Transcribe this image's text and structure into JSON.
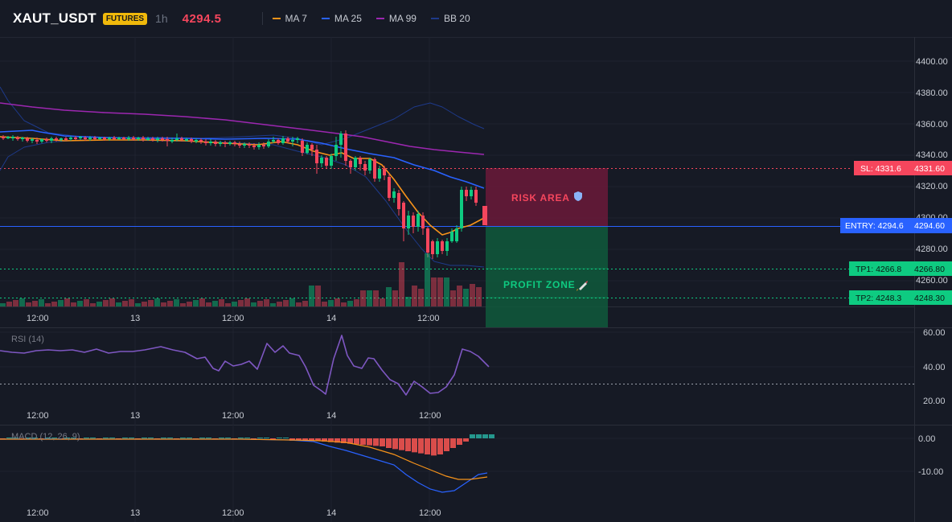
{
  "header": {
    "symbol": "XAUT_USDT",
    "badge": "FUTURES",
    "timeframe": "1h",
    "last_price": "4294.5",
    "legend": [
      {
        "label": "MA 7",
        "color": "#f7931a"
      },
      {
        "label": "MA 25",
        "color": "#2962ff"
      },
      {
        "label": "MA 99",
        "color": "#9c27b0"
      },
      {
        "label": "BB 20",
        "color": "#1e3a8a"
      }
    ]
  },
  "colors": {
    "up": "#0ecb81",
    "down": "#f6465d",
    "entry": "#2962ff",
    "sl": "#f6465d",
    "tp": "#0ecb81",
    "rsi": "#7e57c2"
  },
  "time_axis": [
    "12:00",
    "13",
    "12:00",
    "14",
    "12:00"
  ],
  "price_pane": {
    "price_ticks": [
      "4400.00",
      "4380.00",
      "4360.00",
      "4340.00",
      "4320.00",
      "4300.00",
      "4280.00",
      "4260.00"
    ],
    "risk_area_label": "RISK AREA",
    "profit_zone_label": "PROFIT ZONE",
    "levels": [
      {
        "name": "sl",
        "tag": "SL: 4331.6",
        "axis": "4331.60"
      },
      {
        "name": "entry",
        "tag": "ENTRY: 4294.6",
        "axis": "4294.60"
      },
      {
        "name": "tp1",
        "tag": "TP1: 4266.8",
        "axis": "4266.80"
      },
      {
        "name": "tp2",
        "tag": "TP2: 4248.3",
        "axis": "4248.30"
      }
    ]
  },
  "rsi_pane": {
    "title": "RSI (14)",
    "ticks": [
      "60.00",
      "40.00",
      "20.00"
    ]
  },
  "macd_pane": {
    "title": "MACD (12, 26, 9)",
    "ticks": [
      "0.00",
      "-10.00"
    ]
  }
}
